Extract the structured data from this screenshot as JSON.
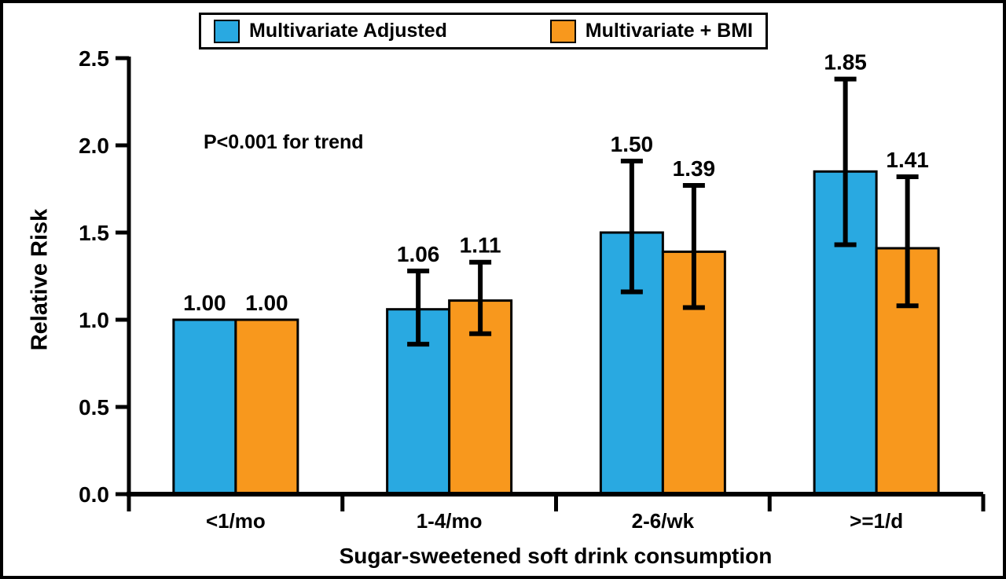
{
  "figure": {
    "background": "#FFFFFF",
    "border_color": "#000000"
  },
  "legend": {
    "position": "top",
    "items": [
      {
        "label": "Multivariate Adjusted",
        "color": "#29A9E1"
      },
      {
        "label": "Multivariate + BMI",
        "color": "#F8981D"
      }
    ]
  },
  "chart_data": {
    "type": "bar",
    "title": "",
    "xlabel": "Sugar-sweetened soft drink consumption",
    "ylabel": "Relative Risk",
    "ylim": [
      0,
      2.5
    ],
    "yticks": [
      "0.0",
      "0.5",
      "1.0",
      "1.5",
      "2.0",
      "2.5"
    ],
    "categories": [
      "<1/mo",
      "1-4/mo",
      "2-6/wk",
      ">=1/d"
    ],
    "grid": false,
    "legend_position": "top",
    "annotation": "P<0.001 for trend",
    "bar_outline_color": "#000000",
    "error_bar_color": "#000000",
    "series": [
      {
        "name": "Multivariate Adjusted",
        "color": "#29A9E1",
        "values": [
          1.0,
          1.06,
          1.5,
          1.85
        ],
        "labels": [
          "1.00",
          "1.06",
          "1.50",
          "1.85"
        ],
        "error_low": [
          null,
          0.86,
          1.16,
          1.43
        ],
        "error_high": [
          null,
          1.28,
          1.91,
          2.38
        ]
      },
      {
        "name": "Multivariate + BMI",
        "color": "#F8981D",
        "values": [
          1.0,
          1.11,
          1.39,
          1.41
        ],
        "labels": [
          "1.00",
          "1.11",
          "1.39",
          "1.41"
        ],
        "error_low": [
          null,
          0.92,
          1.07,
          1.08
        ],
        "error_high": [
          null,
          1.33,
          1.77,
          1.82
        ]
      }
    ]
  }
}
